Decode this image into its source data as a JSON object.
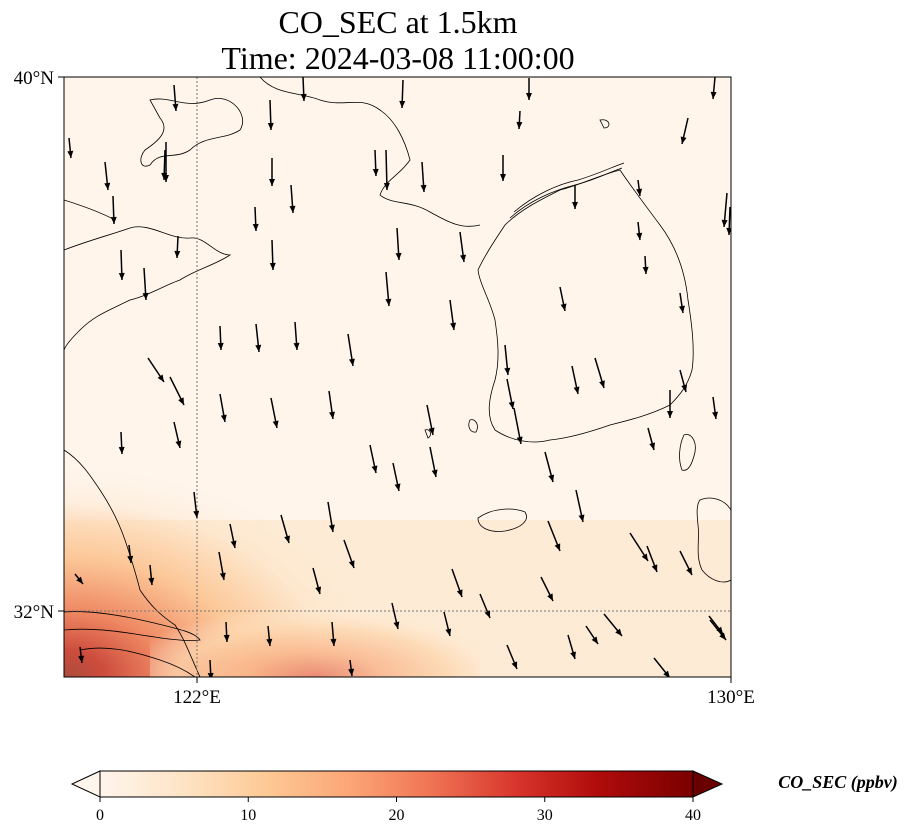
{
  "title": {
    "line1": "CO_SEC at 1.5km",
    "line2": "Time: 2024-03-08 11:00:00"
  },
  "map": {
    "lon_range": [
      119,
      130
    ],
    "lat_range": [
      31,
      40
    ],
    "lon_ticks": [
      {
        "value": 122,
        "label": "122°E"
      },
      {
        "value": 130,
        "label": "130°E"
      }
    ],
    "lat_ticks": [
      {
        "value": 40,
        "label": "40°N"
      },
      {
        "value": 32,
        "label": "32°N"
      }
    ],
    "gridlines": {
      "lon": [
        122
      ],
      "lat": [
        32
      ],
      "style": "dotted"
    },
    "field_colors": [
      "#fff5eb",
      "#fee6ce",
      "#fdd0a2",
      "#fdae6b",
      "#fd8d3c",
      "#f16913",
      "#d94801",
      "#a63603",
      "#7f2704"
    ]
  },
  "colorbar": {
    "label": "CO_SEC (ppbv)",
    "min": 0,
    "max": 40,
    "ticks": [
      0,
      10,
      20,
      30,
      40
    ],
    "extend": "both",
    "colors": [
      "#fff5eb",
      "#fdd9a8",
      "#fcb97c",
      "#f4845e",
      "#e0453d",
      "#bc1a1a",
      "#8c0707",
      "#6a0000"
    ]
  },
  "wind_vectors": {
    "description": "arrows",
    "general_direction": "south / south-southeast"
  }
}
